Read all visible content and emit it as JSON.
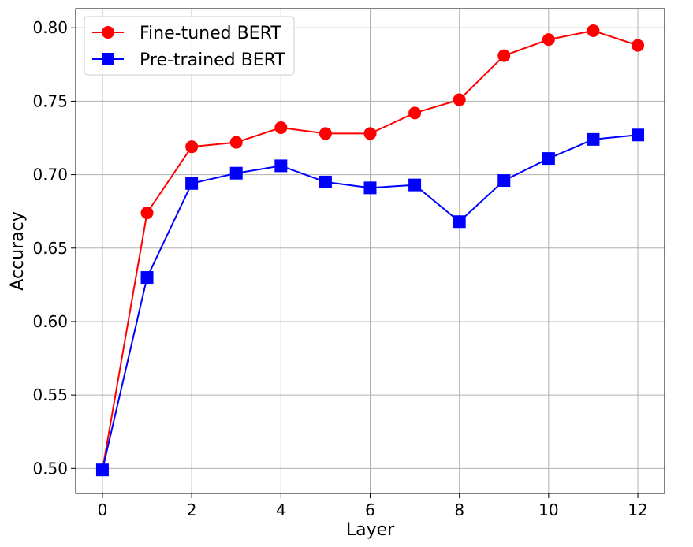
{
  "chart_data": {
    "type": "line",
    "title": "",
    "xlabel": "Layer",
    "ylabel": "Accuracy",
    "xlim": [
      -0.6,
      12.6
    ],
    "ylim": [
      0.483,
      0.813
    ],
    "xticks": [
      0,
      2,
      4,
      6,
      8,
      10,
      12
    ],
    "yticks": [
      0.5,
      0.55,
      0.6,
      0.65,
      0.7,
      0.75,
      0.8
    ],
    "grid": true,
    "legend_position": "top-left",
    "x": [
      0,
      1,
      2,
      3,
      4,
      5,
      6,
      7,
      8,
      9,
      10,
      11,
      12
    ],
    "series": [
      {
        "name": "Fine-tuned BERT",
        "color": "#ff0000",
        "marker": "circle",
        "values": [
          0.499,
          0.674,
          0.719,
          0.722,
          0.732,
          0.728,
          0.728,
          0.742,
          0.751,
          0.781,
          0.792,
          0.798,
          0.788
        ]
      },
      {
        "name": "Pre-trained BERT",
        "color": "#0000ff",
        "marker": "square",
        "values": [
          0.499,
          0.63,
          0.694,
          0.701,
          0.706,
          0.695,
          0.691,
          0.693,
          0.668,
          0.696,
          0.711,
          0.724,
          0.727
        ]
      }
    ]
  }
}
